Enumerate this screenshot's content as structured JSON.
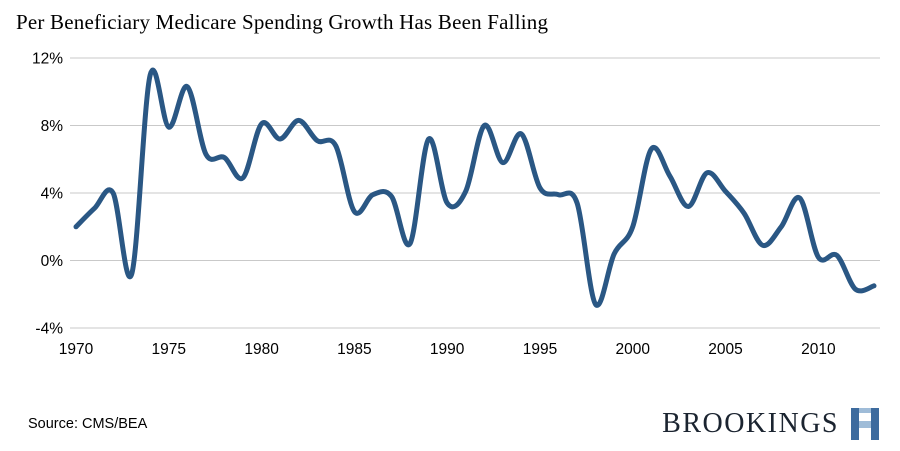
{
  "page": {
    "title": "Per Beneficiary Medicare Spending Growth Has Been Falling"
  },
  "source": {
    "label": "Source: CMS/BEA"
  },
  "logo": {
    "text": "BROOKINGS",
    "icon": "brookings-mark-icon",
    "icon_blue": "#3d6b9e",
    "icon_light_blue": "#9fbcd8"
  },
  "chart_data": {
    "type": "line",
    "title": "Per Beneficiary Medicare Spending Growth Has Been Falling",
    "xlabel": "",
    "ylabel": "",
    "x": [
      1970,
      1971,
      1972,
      1973,
      1974,
      1975,
      1976,
      1977,
      1978,
      1979,
      1980,
      1981,
      1982,
      1983,
      1984,
      1985,
      1986,
      1987,
      1988,
      1989,
      1990,
      1991,
      1992,
      1993,
      1994,
      1995,
      1996,
      1997,
      1998,
      1999,
      2000,
      2001,
      2002,
      2003,
      2004,
      2005,
      2006,
      2007,
      2008,
      2009,
      2010,
      2011,
      2012,
      2013
    ],
    "values": [
      2.0,
      3.1,
      4.0,
      -0.8,
      11.0,
      7.9,
      10.3,
      6.3,
      6.1,
      4.9,
      8.1,
      7.2,
      8.3,
      7.1,
      6.8,
      2.9,
      3.9,
      3.8,
      1.0,
      7.2,
      3.4,
      4.1,
      8.0,
      5.8,
      7.5,
      4.3,
      3.9,
      3.4,
      -2.6,
      0.4,
      2.0,
      6.6,
      5.0,
      3.2,
      5.2,
      4.1,
      2.8,
      0.9,
      2.0,
      3.7,
      0.2,
      0.3,
      -1.7,
      -1.5
    ],
    "ylim": [
      -4,
      12
    ],
    "xlim": [
      1970,
      2013
    ],
    "yticks": [
      -4,
      0,
      4,
      8,
      12
    ],
    "ytick_labels": [
      "-4%",
      "0%",
      "4%",
      "8%",
      "12%"
    ],
    "xticks": [
      1970,
      1975,
      1980,
      1985,
      1990,
      1995,
      2000,
      2005,
      2010
    ],
    "xtick_labels": [
      "1970",
      "1975",
      "1980",
      "1985",
      "1990",
      "1995",
      "2000",
      "2005",
      "2010"
    ],
    "grid": true,
    "legend": false,
    "line_color": "#2a5784",
    "grid_color": "#c9c9c9"
  }
}
